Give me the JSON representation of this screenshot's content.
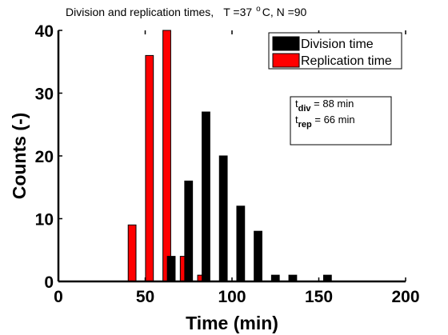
{
  "chart_data": {
    "type": "bar",
    "title_parts": [
      "Division and replication times,",
      "T =37",
      "o",
      "C, N =90"
    ],
    "xlabel": "Time (min)",
    "ylabel": "Counts (-)",
    "xlim": [
      0,
      200
    ],
    "ylim": [
      0,
      40
    ],
    "xticks": [
      0,
      50,
      100,
      150,
      200
    ],
    "yticks": [
      0,
      10,
      20,
      30,
      40
    ],
    "grid": false,
    "legend_position": "top-right",
    "series": [
      {
        "name": "Division time",
        "color": "#000000",
        "x": [
          65,
          75,
          85,
          95,
          105,
          115,
          125,
          135,
          145,
          155
        ],
        "values": [
          4,
          16,
          27,
          20,
          12,
          8,
          1,
          1,
          0,
          1
        ]
      },
      {
        "name": "Replication time",
        "color": "#ff0000",
        "x": [
          45,
          55,
          65,
          75,
          85
        ],
        "values": [
          9,
          36,
          40,
          4,
          1
        ]
      }
    ],
    "annotation": {
      "line1": {
        "main": "t",
        "sub": "div",
        "rest": " = 88 min"
      },
      "line2": {
        "main": "t",
        "sub": "rep",
        "rest": " = 66 min"
      }
    }
  }
}
